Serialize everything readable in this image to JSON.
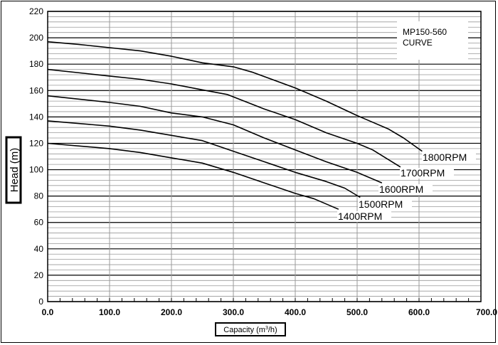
{
  "chart_data": {
    "type": "line",
    "title": "MP150-560",
    "subtitle": "CURVE",
    "xlabel": "Capacity (m³/h)",
    "xlabel_main": "Capacity (m",
    "xlabel_sup": "3",
    "xlabel_end": "/h)",
    "ylabel": "Head (m)",
    "xlim": [
      0,
      700
    ],
    "ylim": [
      0,
      220
    ],
    "grid": true,
    "x_ticks": [
      "0.0",
      "100.0",
      "200.0",
      "300.0",
      "400.0",
      "500.0",
      "600.0",
      "700.0"
    ],
    "y_ticks": [
      "0",
      "20",
      "40",
      "60",
      "80",
      "100",
      "120",
      "140",
      "160",
      "180",
      "200",
      "220"
    ],
    "series": [
      {
        "name": "1800RPM",
        "points": [
          [
            0,
            197
          ],
          [
            50,
            195
          ],
          [
            100,
            192.5
          ],
          [
            150,
            190
          ],
          [
            200,
            186
          ],
          [
            250,
            181
          ],
          [
            300,
            178
          ],
          [
            330,
            174
          ],
          [
            400,
            162
          ],
          [
            450,
            152
          ],
          [
            500,
            141
          ],
          [
            550,
            131
          ],
          [
            575,
            124
          ],
          [
            605,
            114
          ]
        ]
      },
      {
        "name": "1700RPM",
        "points": [
          [
            0,
            176
          ],
          [
            100,
            171
          ],
          [
            150,
            168.5
          ],
          [
            200,
            165
          ],
          [
            250,
            160.5
          ],
          [
            290,
            157
          ],
          [
            350,
            146
          ],
          [
            400,
            138
          ],
          [
            450,
            128
          ],
          [
            500,
            120
          ],
          [
            525,
            115
          ],
          [
            570,
            102
          ]
        ]
      },
      {
        "name": "1600RPM",
        "points": [
          [
            0,
            156
          ],
          [
            100,
            151
          ],
          [
            150,
            148
          ],
          [
            200,
            143
          ],
          [
            250,
            140
          ],
          [
            300,
            134
          ],
          [
            350,
            124
          ],
          [
            400,
            115
          ],
          [
            450,
            106
          ],
          [
            500,
            98
          ],
          [
            540,
            90
          ]
        ]
      },
      {
        "name": "1500RPM",
        "points": [
          [
            0,
            137
          ],
          [
            100,
            133
          ],
          [
            150,
            130
          ],
          [
            200,
            126
          ],
          [
            250,
            122
          ],
          [
            300,
            114
          ],
          [
            350,
            106
          ],
          [
            400,
            98
          ],
          [
            450,
            91
          ],
          [
            480,
            86
          ],
          [
            505,
            79
          ]
        ]
      },
      {
        "name": "1400RPM",
        "points": [
          [
            0,
            120
          ],
          [
            100,
            116
          ],
          [
            150,
            113
          ],
          [
            200,
            109
          ],
          [
            250,
            105
          ],
          [
            300,
            98
          ],
          [
            350,
            90
          ],
          [
            400,
            82
          ],
          [
            430,
            78
          ],
          [
            470,
            70
          ]
        ]
      }
    ],
    "line_color": "#000000",
    "grid_minor_color": "#999999",
    "grid_major_color": "#000000"
  }
}
